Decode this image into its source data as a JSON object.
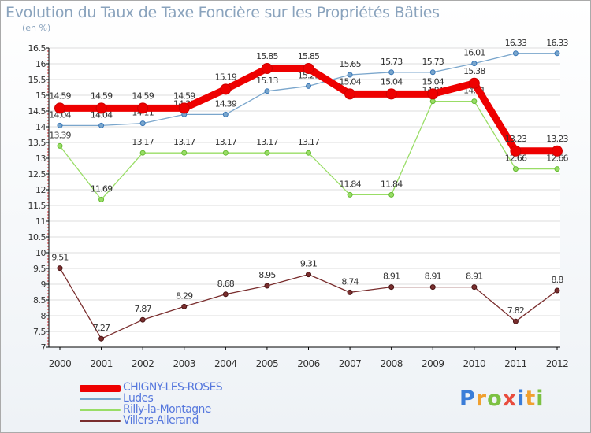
{
  "chart_data": {
    "type": "line",
    "title": "Evolution du Taux de Taxe Foncière sur les Propriétés Bâties",
    "unit_label": "(en %)",
    "x": [
      "2000",
      "2001",
      "2002",
      "2003",
      "2004",
      "2005",
      "2006",
      "2007",
      "2008",
      "2009",
      "2010",
      "2011",
      "2012"
    ],
    "ylim": [
      7,
      16.5
    ],
    "ytick_step": 0.5,
    "y_ticks": [
      "16.5",
      "16",
      "15.5",
      "15",
      "14.5",
      "14",
      "13.5",
      "13",
      "12.5",
      "12",
      "11.5",
      "11",
      "10.5",
      "10",
      "9.5",
      "9",
      "8.5",
      "8",
      "7.5",
      "7"
    ],
    "grid": "horizontal",
    "legend_position": "bottom-left",
    "series": [
      {
        "name": "CHIGNY-LES-ROSES",
        "color": "#ee0000",
        "values": [
          14.59,
          14.59,
          14.59,
          14.59,
          15.19,
          15.85,
          15.85,
          15.04,
          15.04,
          15.04,
          15.38,
          13.23,
          13.23
        ],
        "labels": [
          "14.59",
          "14.59",
          "14.59",
          "14.59",
          "15.19",
          "15.85",
          "15.85",
          "15.04",
          "15.04",
          "15.04",
          "15.38",
          "13.23",
          "13.23"
        ]
      },
      {
        "name": "Ludes",
        "color": "#7aa6cc",
        "values": [
          14.04,
          14.04,
          14.11,
          14.39,
          14.39,
          15.13,
          15.29,
          15.65,
          15.73,
          15.73,
          16.01,
          16.33,
          16.33
        ],
        "labels": [
          "14.04",
          "14.04",
          "14.11",
          "14.39",
          "14.39",
          "15.13",
          "15.29",
          "15.65",
          "15.73",
          "15.73",
          "16.01",
          "16.33",
          "16.33"
        ]
      },
      {
        "name": "Rilly-la-Montagne",
        "color": "#99dd66",
        "values": [
          13.39,
          11.69,
          13.17,
          13.17,
          13.17,
          13.17,
          13.17,
          11.84,
          11.84,
          14.81,
          14.81,
          12.66,
          12.66
        ],
        "labels": [
          "13.39",
          "11.69",
          "13.17",
          "13.17",
          "13.17",
          "13.17",
          "13.17",
          "11.84",
          "11.84",
          "14.81",
          "14.81",
          "12.66",
          "12.66"
        ]
      },
      {
        "name": "Villers-Allerand",
        "color": "#7a2e2e",
        "values": [
          9.51,
          7.27,
          7.87,
          8.29,
          8.68,
          8.95,
          9.31,
          8.74,
          8.91,
          8.91,
          8.91,
          7.82,
          8.8
        ],
        "labels": [
          "9.51",
          "7.27",
          "7.87",
          "8.29",
          "8.68",
          "8.95",
          "9.31",
          "8.74",
          "8.91",
          "8.91",
          "8.91",
          "7.82",
          "8.8"
        ]
      }
    ]
  },
  "logo": {
    "text": "Proxiti",
    "letters": [
      "P",
      "r",
      "o",
      "x",
      "i",
      "t",
      "i"
    ],
    "colors": [
      "#3b7dd8",
      "#f0a030",
      "#7cc142",
      "#e84c3d",
      "#3b7dd8",
      "#f0a030",
      "#7cc142"
    ]
  }
}
